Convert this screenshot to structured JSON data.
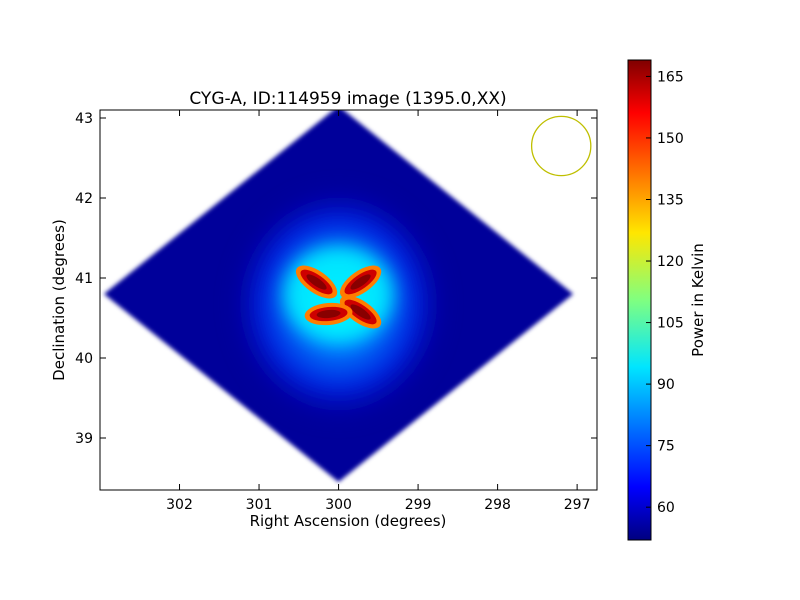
{
  "chart_data": {
    "type": "heatmap",
    "title": "CYG-A, ID:114959 image (1395.0,XX)",
    "xlabel": "Right Ascension (degrees)",
    "ylabel": "Declination (degrees)",
    "x_range": [
      303.0,
      296.75
    ],
    "y_range": [
      38.35,
      43.1
    ],
    "x_ticks": [
      302,
      301,
      300,
      299,
      298,
      297
    ],
    "x_tick_labels": [
      "302",
      "301",
      "300",
      "299",
      "298",
      "297"
    ],
    "y_ticks": [
      39,
      40,
      41,
      42,
      43
    ],
    "y_tick_labels": [
      "39",
      "40",
      "41",
      "42",
      "43"
    ],
    "colorbar": {
      "label": "Power in Kelvin",
      "colormap": "jet",
      "range": [
        52,
        169
      ],
      "ticks": [
        60,
        75,
        90,
        105,
        120,
        135,
        150,
        165
      ],
      "tick_labels": [
        "60",
        "75",
        "90",
        "105",
        "120",
        "135",
        "150",
        "165"
      ]
    },
    "field_background_value": 55,
    "field_center": [
      300.0,
      40.8
    ],
    "field_half_extent": [
      2.95,
      2.35
    ],
    "central_source": {
      "center": [
        300.0,
        40.8
      ],
      "halo_value": 95,
      "peak_value": 168
    },
    "beam_marker": {
      "center": [
        297.2,
        42.65
      ],
      "radius_deg": 0.37,
      "color": "#bfbf00"
    },
    "grid": false,
    "legend": "none"
  }
}
